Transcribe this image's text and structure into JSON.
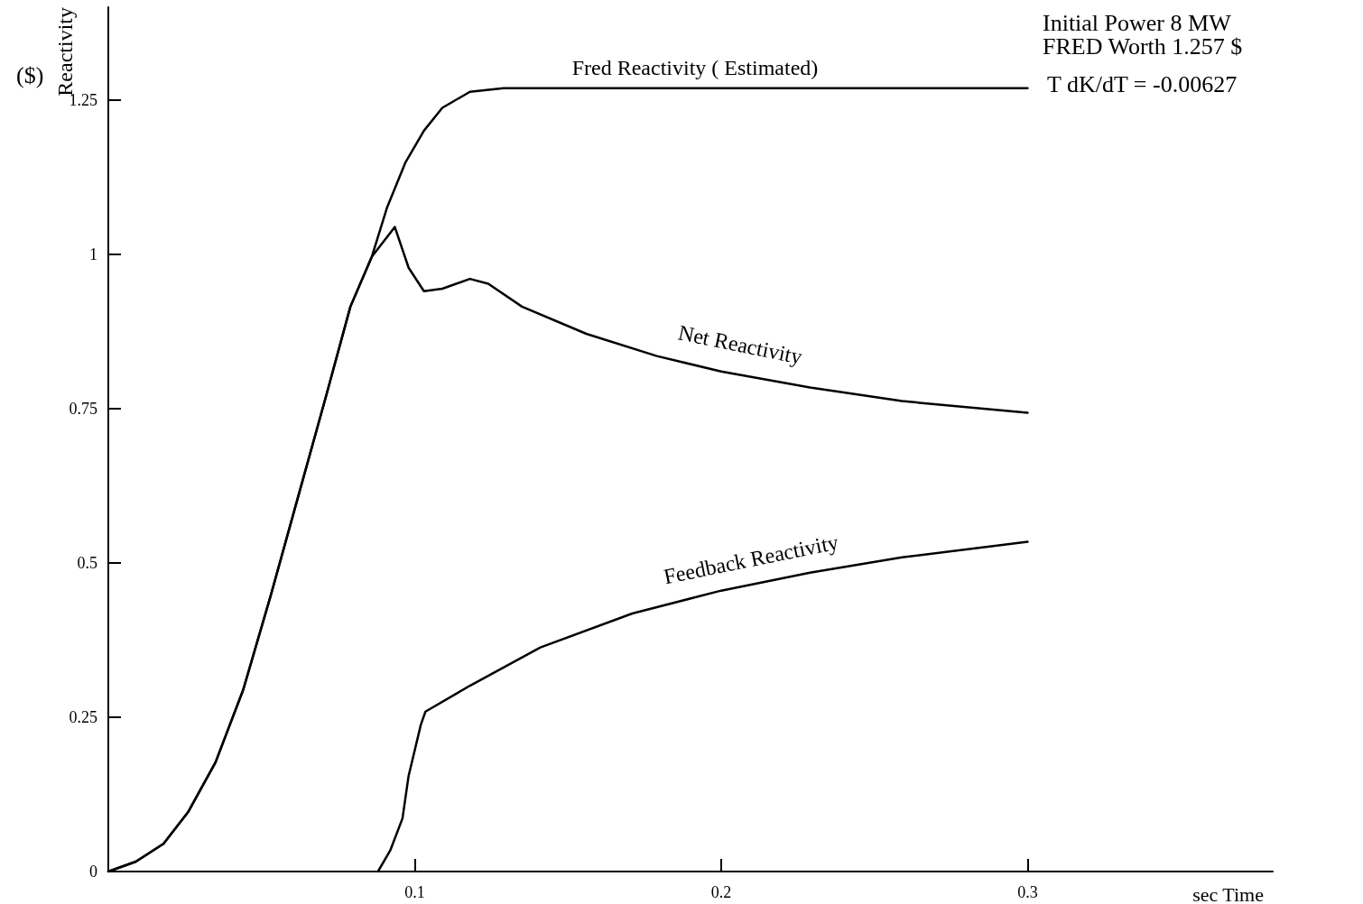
{
  "chart_data": {
    "type": "line",
    "xlabel": "sec Time",
    "ylabel": "Reactivity",
    "xlim": [
      0,
      0.38
    ],
    "xticks": [
      {
        "value": 0,
        "label": null
      },
      0.1,
      0.2,
      0.3
    ],
    "ylim": [
      0,
      1.4
    ],
    "yticks": [
      0,
      0.25,
      0.5,
      0.75,
      1.0,
      1.25
    ],
    "grid": false,
    "marker": "none",
    "line_style": "solid",
    "series": [
      {
        "color": "#000000",
        "x": [
          0,
          0.009,
          0.018,
          0.026,
          0.035,
          0.044,
          0.053,
          0.062,
          0.071,
          0.079,
          0.086,
          0.091,
          0.097,
          0.103,
          0.109,
          0.118,
          0.129,
          0.156,
          0.2,
          0.3
        ],
        "values": [
          0,
          0.016,
          0.045,
          0.096,
          0.177,
          0.294,
          0.447,
          0.608,
          0.769,
          0.915,
          0.996,
          1.076,
          1.149,
          1.2,
          1.237,
          1.263,
          1.269,
          1.269,
          1.269,
          1.269
        ]
      },
      {
        "color": "#000000",
        "x": [
          0,
          0.009,
          0.018,
          0.026,
          0.035,
          0.044,
          0.053,
          0.062,
          0.071,
          0.079,
          0.086,
          0.0935,
          0.098,
          0.103,
          0.109,
          0.118,
          0.124,
          0.135,
          0.156,
          0.179,
          0.2,
          0.229,
          0.259,
          0.3
        ],
        "values": [
          0,
          0.016,
          0.045,
          0.096,
          0.177,
          0.294,
          0.447,
          0.608,
          0.769,
          0.915,
          0.996,
          1.044,
          0.978,
          0.94,
          0.944,
          0.96,
          0.952,
          0.915,
          0.871,
          0.835,
          0.81,
          0.784,
          0.762,
          0.743
        ]
      },
      {
        "color": "#000000",
        "x": [
          0.088,
          0.092,
          0.096,
          0.098,
          0.102,
          0.1035,
          0.118,
          0.141,
          0.171,
          0.2,
          0.229,
          0.259,
          0.3
        ],
        "values": [
          0,
          0.034,
          0.086,
          0.155,
          0.238,
          0.259,
          0.301,
          0.363,
          0.418,
          0.455,
          0.484,
          0.509,
          0.534
        ]
      }
    ],
    "annotations": [
      "Fred Reactivity ( Estimated)",
      "Net Reactivity",
      "Feedback Reactivity",
      "($)",
      "Initial Power 8 MW",
      "FRED Worth 1.257 $",
      "T dK/dT = -0.00627"
    ]
  }
}
